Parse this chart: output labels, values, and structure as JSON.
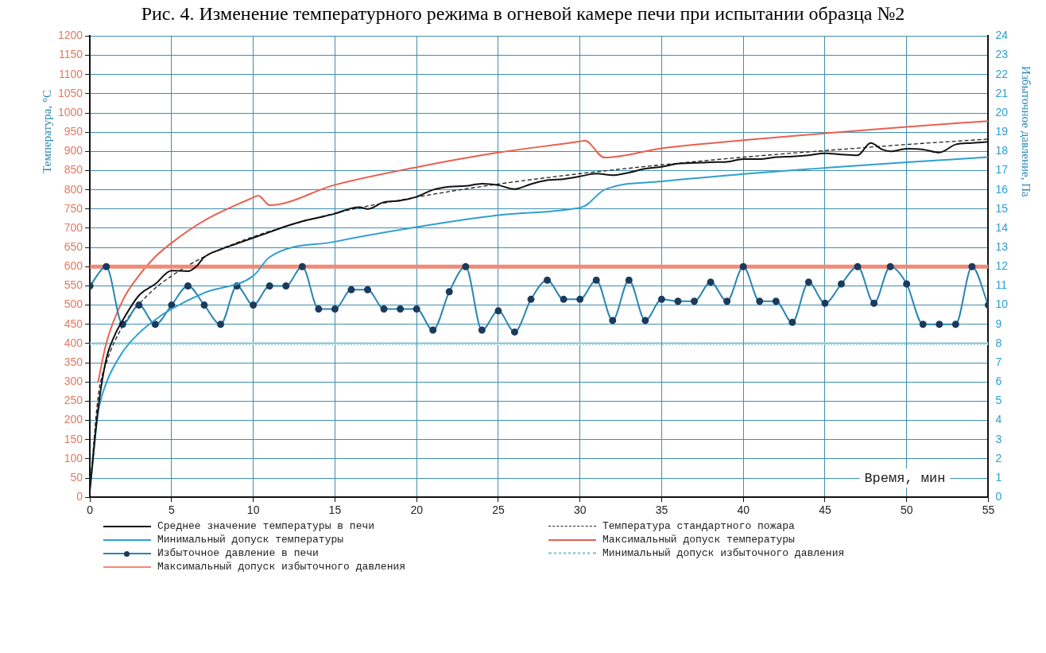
{
  "chart_data": {
    "type": "line",
    "title": "Рис. 4. Изменение температурного режима в огневой камере печи при испытании образца №2",
    "xlabel": "Время, мин",
    "ylabel": "Температура, °С",
    "y2label": "Избыточное давление, Па",
    "xlim": [
      0,
      55
    ],
    "xticks": [
      0,
      5,
      10,
      15,
      20,
      25,
      30,
      35,
      40,
      45,
      50,
      55
    ],
    "ylim": [
      0,
      1200
    ],
    "yticks": [
      0,
      50,
      100,
      150,
      200,
      250,
      300,
      350,
      400,
      450,
      500,
      550,
      600,
      650,
      700,
      750,
      800,
      850,
      900,
      950,
      1000,
      1050,
      1100,
      1150,
      1200
    ],
    "y2lim": [
      0,
      24
    ],
    "y2ticks": [
      0,
      1,
      2,
      3,
      4,
      5,
      6,
      7,
      8,
      9,
      10,
      11,
      12,
      13,
      14,
      15,
      16,
      17,
      18,
      19,
      20,
      21,
      22,
      23,
      24
    ],
    "grid": true,
    "legend": "bottom",
    "marker": "none",
    "line_style": "solid",
    "series": [
      {
        "name": "Среднее значение температуры в печи",
        "color": "#111111",
        "x": [
          0,
          0.5,
          1,
          1.5,
          2,
          3,
          4,
          5,
          6,
          6.5,
          7,
          8,
          9,
          10,
          11,
          12,
          13,
          14,
          15,
          16,
          16.5,
          17,
          18,
          19,
          20,
          21,
          22,
          23,
          24,
          25,
          26,
          27,
          28,
          29,
          30,
          31,
          32,
          33,
          34,
          35,
          36,
          37,
          38,
          39,
          40,
          41,
          42,
          43,
          44,
          45,
          46,
          47,
          47.8,
          48.5,
          49,
          50,
          51,
          52,
          53,
          54,
          55
        ],
        "values": [
          20,
          230,
          360,
          420,
          460,
          525,
          555,
          590,
          588,
          600,
          625,
          645,
          660,
          675,
          690,
          705,
          718,
          728,
          738,
          752,
          755,
          750,
          768,
          772,
          782,
          800,
          808,
          810,
          816,
          812,
          802,
          815,
          825,
          828,
          835,
          842,
          838,
          845,
          855,
          860,
          868,
          870,
          872,
          873,
          880,
          880,
          885,
          887,
          890,
          895,
          892,
          890,
          922,
          905,
          900,
          907,
          905,
          897,
          918,
          922,
          925
        ]
      },
      {
        "name": "Минимальный допуск температуры",
        "color": "#2f9fd0",
        "x": [
          0,
          0.5,
          1,
          2,
          3,
          4,
          5,
          7,
          10,
          11,
          15,
          20,
          25,
          29.5,
          30.3,
          31.5,
          35,
          40,
          45,
          50,
          55
        ],
        "values": [
          20,
          220,
          297,
          378,
          427,
          462,
          490,
          532,
          576,
          625,
          665,
          703,
          734,
          750,
          758,
          800,
          822,
          841,
          857,
          872,
          885
        ]
      },
      {
        "name": "Избыточное давление в печи",
        "color": "#2a86b0",
        "marker": "circle",
        "axis": "y2",
        "x": [
          0,
          1,
          2,
          3,
          4,
          5,
          6,
          7,
          8,
          9,
          10,
          11,
          12,
          13,
          14,
          15,
          16,
          17,
          18,
          19,
          20,
          21,
          22,
          23,
          24,
          25,
          26,
          27,
          28,
          29,
          30,
          31,
          32,
          33,
          34,
          35,
          36,
          37,
          38,
          39,
          40,
          41,
          42,
          43,
          44,
          45,
          46,
          47,
          48,
          49,
          50,
          51,
          52,
          53,
          54,
          55
        ],
        "values": [
          11,
          12,
          9,
          10,
          9,
          10,
          11,
          10,
          9,
          11,
          10,
          11,
          11,
          12,
          9.8,
          9.8,
          10.8,
          10.8,
          9.8,
          9.8,
          9.8,
          8.7,
          10.7,
          12,
          8.7,
          9.7,
          8.6,
          10.3,
          11.3,
          10.3,
          10.3,
          11.3,
          9.2,
          11.3,
          9.2,
          10.3,
          10.2,
          10.2,
          11.2,
          10.2,
          12,
          10.2,
          10.2,
          9.1,
          11.2,
          10.1,
          11.1,
          12,
          10.1,
          12,
          11.1,
          9,
          9,
          9,
          12,
          10
        ]
      },
      {
        "name": "Максимальный допуск избыточного давления",
        "color": "#f08a78",
        "axis": "y2",
        "x": [
          0,
          55
        ],
        "values": [
          12,
          12
        ]
      },
      {
        "name": "Температура стандартного пожара",
        "color": "#222222",
        "line_style": "dashed",
        "x": [
          0,
          0.5,
          1,
          2,
          3,
          4,
          5,
          7,
          10,
          15,
          20,
          25,
          30,
          35,
          40,
          45,
          50,
          55
        ],
        "values": [
          20,
          261,
          349,
          445,
          502,
          544,
          576,
          626,
          678,
          739,
          781,
          815,
          842,
          865,
          885,
          902,
          918,
          932
        ]
      },
      {
        "name": "Максимальный допуск температуры",
        "color": "#e8604f",
        "x": [
          0.5,
          1,
          2,
          3,
          4,
          5,
          7,
          10,
          10.3,
          11,
          15,
          20,
          25,
          30,
          30.3,
          31.5,
          35,
          40,
          45,
          50,
          55
        ],
        "values": [
          300,
          401,
          512,
          577,
          626,
          662,
          720,
          780,
          785,
          760,
          813,
          859,
          897,
          926,
          928,
          884,
          908,
          929,
          947,
          964,
          979
        ]
      },
      {
        "name": "Минимальный допуск избыточного давления",
        "color": "#9fd3e0",
        "line_style": "dotted",
        "axis": "y2",
        "x": [
          0,
          55
        ],
        "values": [
          8,
          8
        ]
      }
    ]
  }
}
